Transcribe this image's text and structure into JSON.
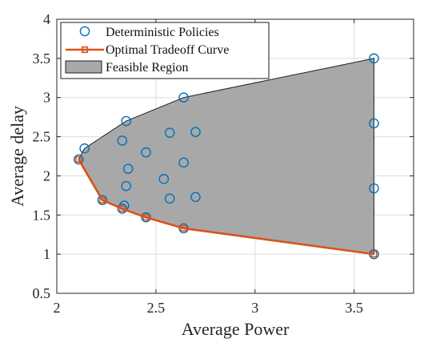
{
  "chart_data": {
    "type": "scatter",
    "title": "",
    "xlabel": "Average Power",
    "ylabel": "Average delay",
    "xlim": [
      2,
      3.8
    ],
    "ylim": [
      0.5,
      4
    ],
    "xticks": [
      2,
      2.5,
      3,
      3.5
    ],
    "yticks": [
      0.5,
      1,
      1.5,
      2,
      2.5,
      3,
      3.5,
      4
    ],
    "xtick_labels": [
      "2",
      "2.5",
      "3",
      "3.5"
    ],
    "ytick_labels": [
      "0.5",
      "1",
      "1.5",
      "2",
      "2.5",
      "3",
      "3.5",
      "4"
    ],
    "grid": true,
    "legend_position": "top-left",
    "colors": {
      "deterministic": "#0072BD",
      "optimal": "#D95319",
      "feasible_fill": "#A8A8A8",
      "feasible_edge": "#222222",
      "grid": "#DCDCDC",
      "axis": "#262626"
    },
    "series": [
      {
        "name": "Deterministic Policies",
        "type": "scatter",
        "x": [
          2.11,
          2.14,
          2.23,
          2.33,
          2.33,
          2.34,
          2.35,
          2.35,
          2.36,
          2.45,
          2.45,
          2.54,
          2.57,
          2.57,
          2.64,
          2.64,
          2.64,
          2.7,
          2.7,
          3.6,
          3.6,
          3.6,
          3.6
        ],
        "y": [
          2.21,
          2.35,
          1.69,
          2.45,
          1.58,
          1.62,
          1.87,
          2.7,
          2.09,
          1.47,
          2.3,
          1.96,
          2.55,
          1.71,
          3.0,
          2.17,
          1.33,
          2.56,
          1.73,
          3.5,
          2.67,
          1.84,
          1.0
        ]
      },
      {
        "name": "Optimal Tradeoff Curve",
        "type": "line",
        "x": [
          2.11,
          2.23,
          2.33,
          2.45,
          2.64,
          3.6
        ],
        "y": [
          2.21,
          1.69,
          1.58,
          1.47,
          1.33,
          1.0
        ]
      },
      {
        "name": "Feasible Region",
        "type": "area",
        "x": [
          2.11,
          2.14,
          2.35,
          2.64,
          3.6,
          3.6,
          2.64,
          2.45,
          2.33,
          2.23,
          2.11
        ],
        "y": [
          2.21,
          2.35,
          2.7,
          3.0,
          3.5,
          1.0,
          1.33,
          1.47,
          1.58,
          1.69,
          2.21
        ]
      }
    ]
  }
}
